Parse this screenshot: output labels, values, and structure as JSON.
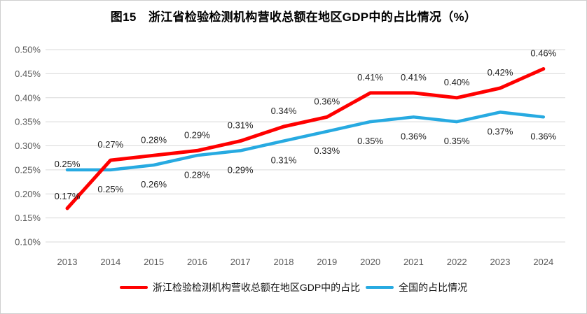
{
  "chart_data": {
    "type": "line",
    "title": "图15　浙江省检验检测机构营收总额在地区GDP中的占比情况（%）",
    "categories": [
      "2013",
      "2014",
      "2015",
      "2016",
      "2017",
      "2018",
      "2019",
      "2020",
      "2021",
      "2022",
      "2023",
      "2024"
    ],
    "series": [
      {
        "name": "浙江检验检测机构营收总额在地区GDP中的占比",
        "color": "#FF0000",
        "data_labels": "above",
        "values": [
          0.17,
          0.27,
          0.28,
          0.29,
          0.31,
          0.34,
          0.36,
          0.41,
          0.41,
          0.4,
          0.42,
          0.46
        ]
      },
      {
        "name": "全国的占比情况",
        "color": "#27AAE1",
        "data_labels": "below",
        "values": [
          0.25,
          0.25,
          0.26,
          0.28,
          0.29,
          0.31,
          0.33,
          0.35,
          0.36,
          0.35,
          0.37,
          0.36
        ]
      }
    ],
    "xlabel": "",
    "ylabel": "",
    "ylim": [
      0.1,
      0.5
    ],
    "ytick_step": 0.05,
    "ytick_labels": [
      "0.10%",
      "0.15%",
      "0.20%",
      "0.25%",
      "0.30%",
      "0.35%",
      "0.40%",
      "0.45%",
      "0.50%"
    ],
    "value_suffix": "%",
    "grid": true,
    "legend_position": "bottom",
    "colors": {
      "gridline": "#D9D9D9",
      "axis_text": "#595959",
      "data_label_text": "#1F1F1F",
      "background": "#FFFFFF"
    }
  }
}
